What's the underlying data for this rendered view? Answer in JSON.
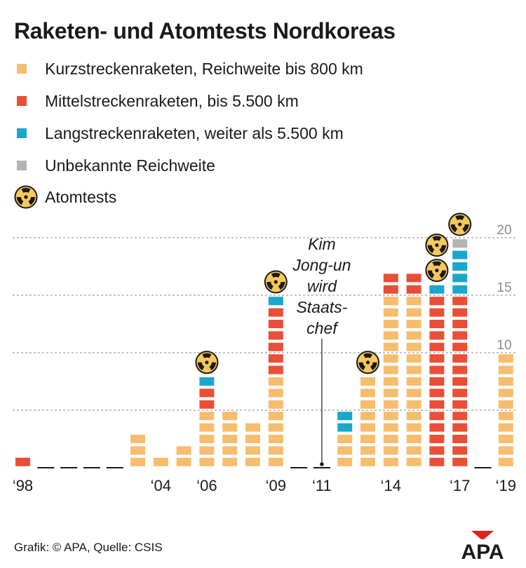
{
  "title": "Raketen- und Atomtests Nordkoreas",
  "legend": [
    {
      "key": "short",
      "label": "Kurzstreckenraketen, Reichweite bis 800 km"
    },
    {
      "key": "medium",
      "label": "Mittelstreckenraketen, bis 5.500 km"
    },
    {
      "key": "long",
      "label": "Langstreckenraketen, weiter als 5.500 km"
    },
    {
      "key": "unknown",
      "label": "Unbekannte Reichweite"
    },
    {
      "key": "nuclear",
      "label": "Atomtests"
    }
  ],
  "colors": {
    "short": "#f6bd6e",
    "medium": "#e94e36",
    "long": "#1aa7cc",
    "unknown": "#b4b4b4",
    "grid": "#8a8a8a",
    "atom_fill": "#f7c85a",
    "atom_symbol": "#1a1a1a"
  },
  "annotation": {
    "lines": [
      "Kim",
      "Jong-un",
      "wird",
      "Staats-",
      "chef"
    ],
    "year": 2011
  },
  "footer": {
    "source": "Grafik: © APA, Quelle: CSIS",
    "logo_text": "APA"
  },
  "chart_data": {
    "type": "bar",
    "stacked": true,
    "unit_blocks": true,
    "years": [
      1998,
      1999,
      2000,
      2001,
      2002,
      2003,
      2004,
      2005,
      2006,
      2007,
      2008,
      2009,
      2010,
      2011,
      2012,
      2013,
      2014,
      2015,
      2016,
      2017,
      2018,
      2019
    ],
    "x_tick_labels": [
      {
        "year": 1998,
        "label": "‘98"
      },
      {
        "year": 2004,
        "label": "‘04"
      },
      {
        "year": 2006,
        "label": "‘06"
      },
      {
        "year": 2009,
        "label": "‘09"
      },
      {
        "year": 2011,
        "label": "‘11"
      },
      {
        "year": 2014,
        "label": "‘14"
      },
      {
        "year": 2017,
        "label": "‘17"
      },
      {
        "year": 2019,
        "label": "‘19"
      }
    ],
    "series": [
      {
        "name": "Kurzstreckenraketen, Reichweite bis 800 km",
        "key": "short",
        "values": [
          0,
          0,
          0,
          0,
          0,
          3,
          1,
          2,
          5,
          5,
          4,
          8,
          0,
          0,
          3,
          8,
          15,
          15,
          0,
          0,
          0,
          10
        ]
      },
      {
        "name": "Mittelstreckenraketen, bis 5.500 km",
        "key": "medium",
        "values": [
          1,
          0,
          0,
          0,
          0,
          0,
          0,
          0,
          2,
          0,
          0,
          6,
          0,
          0,
          0,
          0,
          2,
          2,
          15,
          15,
          0,
          0
        ]
      },
      {
        "name": "Langstreckenraketen, weiter als 5.500 km",
        "key": "long",
        "values": [
          0,
          0,
          0,
          0,
          0,
          0,
          0,
          0,
          1,
          0,
          0,
          1,
          0,
          0,
          2,
          0,
          0,
          0,
          1,
          4,
          0,
          0
        ]
      },
      {
        "name": "Unbekannte Reichweite",
        "key": "unknown",
        "values": [
          0,
          0,
          0,
          0,
          0,
          0,
          0,
          0,
          0,
          0,
          0,
          0,
          0,
          0,
          0,
          0,
          0,
          0,
          0,
          1,
          0,
          0
        ]
      }
    ],
    "nuclear_tests": [
      {
        "year": 2006,
        "count": 1
      },
      {
        "year": 2009,
        "count": 1
      },
      {
        "year": 2013,
        "count": 1
      },
      {
        "year": 2016,
        "count": 2
      },
      {
        "year": 2017,
        "count": 1
      }
    ],
    "y_gridlines": [
      5,
      10,
      15,
      20
    ],
    "y_tick_labels": [
      {
        "value": 10,
        "label": "10"
      },
      {
        "value": 15,
        "label": "15"
      },
      {
        "value": 20,
        "label": "20"
      }
    ],
    "ylim": [
      0,
      20
    ],
    "title": "Raketen- und Atomtests Nordkoreas"
  }
}
